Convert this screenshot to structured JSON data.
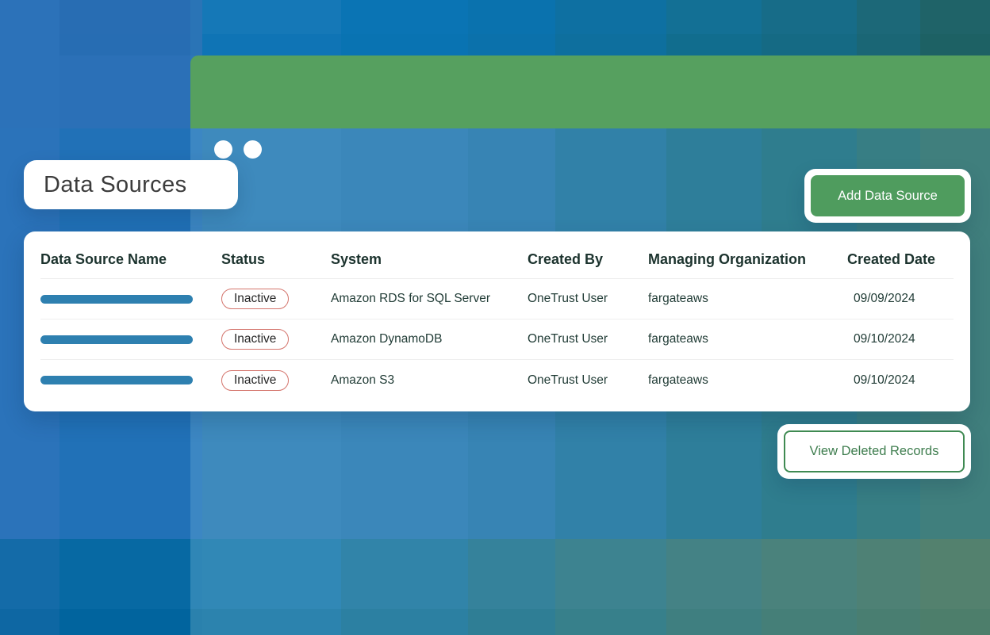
{
  "window_bar": {
    "dot_count": 2
  },
  "page_title": "Data Sources",
  "buttons": {
    "add_data_source": "Add Data Source",
    "view_deleted_records": "View Deleted Records"
  },
  "table": {
    "columns": [
      "Data Source Name",
      "Status",
      "System",
      "Created By",
      "Managing Organization",
      "Created Date"
    ],
    "rows": [
      {
        "name_redacted": "blue-bar",
        "status": "Inactive",
        "system": "Amazon RDS for SQL Server",
        "created_by": "OneTrust User",
        "managing_organization": "fargateaws",
        "created_date": "09/09/2024"
      },
      {
        "name_redacted": "blue-bar",
        "status": "Inactive",
        "system": "Amazon DynamoDB",
        "created_by": "OneTrust User",
        "managing_organization": "fargateaws",
        "created_date": "09/10/2024"
      },
      {
        "name_redacted": "blue-bar",
        "status": "Inactive",
        "system": "Amazon S3",
        "created_by": "OneTrust User",
        "managing_organization": "fargateaws",
        "created_date": "09/10/2024"
      }
    ]
  },
  "colors": {
    "green_bar": "#56a05f",
    "add_button_bg": "#4f9c5e",
    "view_deleted_border": "#3f8a52",
    "view_deleted_text": "#3e7d4e",
    "status_badge_border": "#d4746c",
    "name_bar_blue": "#2e80b0",
    "header_text": "#1c332e",
    "cell_text": "#213c36",
    "title_text": "#3c3c3c"
  },
  "background": {
    "col_edges": [
      0,
      75,
      240,
      255,
      430,
      590,
      700,
      840,
      960,
      1080,
      1160,
      1248
    ],
    "row_edges": [
      0,
      43,
      70,
      162,
      680,
      768,
      801
    ],
    "tiles": [
      [
        "#2c72b9",
        "#286db3",
        "#2a74b6",
        "#1578b7",
        "#0a74b4",
        "#0a72ae",
        "#0e70a2",
        "#137095",
        "#176c88",
        "#1c6878",
        "#1f6368"
      ],
      [
        "#2c72b9",
        "#276db3",
        "#2a74b6",
        "#0f74b5",
        "#0973b2",
        "#0b71ab",
        "#0e6f9e",
        "#116d8e",
        "#156a84",
        "#1a6675",
        "#1d6164"
      ],
      [
        "#2c72b9",
        "#2b70b7",
        "#2d77b8",
        "#1074b4",
        "#0973b1",
        "#0b71aa",
        "#0e6f9d",
        "#126e90",
        "#156a84",
        "#1a6675",
        "#1d6164"
      ],
      [
        "#2b73ba",
        "#2171b7",
        "#3c87c3",
        "#3e8abd",
        "#3b87ba",
        "#3784b4",
        "#3181a8",
        "#2e7e9a",
        "#2f7d8e",
        "#377e84",
        "#407f7d"
      ],
      [
        "#146ba8",
        "#0769a3",
        "#2f86b6",
        "#3188b6",
        "#3184a9",
        "#35829b",
        "#3d8390",
        "#448285",
        "#4a827c",
        "#4e8175",
        "#53816e"
      ],
      [
        "#0e67a3",
        "#01649e",
        "#2a81ad",
        "#2c83ae",
        "#2c80a2",
        "#2f7e95",
        "#37808b",
        "#3f7f80",
        "#457f78",
        "#497e71",
        "#4d7e6b"
      ]
    ]
  }
}
